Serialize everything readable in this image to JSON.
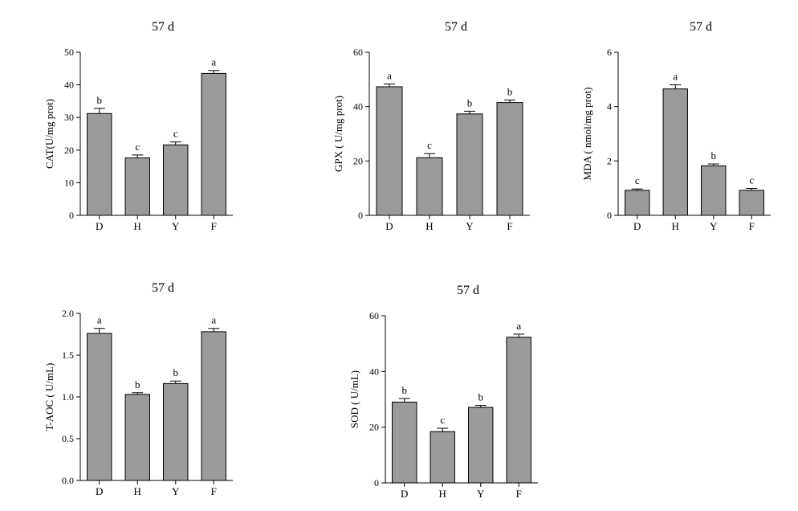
{
  "colors": {
    "bar": "#9b9b9b",
    "bar_stroke": "#000000",
    "axis": "#000000"
  },
  "chart_data": [
    {
      "type": "bar",
      "title": "57 d",
      "xlabel": "",
      "ylabel": "CAT(U/mg prot)",
      "categories": [
        "D",
        "H",
        "Y",
        "F"
      ],
      "values": [
        31.2,
        17.6,
        21.6,
        43.5
      ],
      "errors": [
        1.6,
        0.9,
        0.9,
        0.9
      ],
      "letters": [
        "b",
        "c",
        "c",
        "a"
      ],
      "ylim": [
        0,
        50
      ],
      "yticks": [
        0,
        10,
        20,
        30,
        40,
        50
      ],
      "yticklabels": [
        "0",
        "10",
        "20",
        "30",
        "40",
        "50"
      ]
    },
    {
      "type": "bar",
      "title": "57 d",
      "xlabel": "",
      "ylabel": "GPX ( U/mg prot)",
      "categories": [
        "D",
        "H",
        "Y",
        "F"
      ],
      "values": [
        47.3,
        21.2,
        37.3,
        41.5
      ],
      "errors": [
        1.0,
        1.5,
        1.0,
        0.9
      ],
      "letters": [
        "a",
        "c",
        "b",
        "b"
      ],
      "ylim": [
        0,
        60
      ],
      "yticks": [
        0,
        20,
        40,
        60
      ],
      "yticklabels": [
        "0",
        "20",
        "40",
        "60"
      ]
    },
    {
      "type": "bar",
      "title": "57 d",
      "xlabel": "",
      "ylabel": "MDA ( nmol/mg prot)",
      "categories": [
        "D",
        "H",
        "Y",
        "F"
      ],
      "values": [
        0.92,
        4.65,
        1.82,
        0.92
      ],
      "errors": [
        0.05,
        0.15,
        0.07,
        0.07
      ],
      "letters": [
        "c",
        "a",
        "b",
        "c"
      ],
      "ylim": [
        0,
        6
      ],
      "yticks": [
        0,
        2,
        4,
        6
      ],
      "yticklabels": [
        "0",
        "2",
        "4",
        "6"
      ]
    },
    {
      "type": "bar",
      "title": "57 d",
      "xlabel": "",
      "ylabel": "T-AOC ( U/mL)",
      "categories": [
        "D",
        "H",
        "Y",
        "F"
      ],
      "values": [
        1.76,
        1.03,
        1.16,
        1.78
      ],
      "errors": [
        0.06,
        0.02,
        0.03,
        0.04
      ],
      "letters": [
        "a",
        "b",
        "b",
        "a"
      ],
      "ylim": [
        0,
        2.0
      ],
      "yticks": [
        0,
        0.5,
        1.0,
        1.5,
        2.0
      ],
      "yticklabels": [
        "0.0",
        "0.5",
        "1.0",
        "1.5",
        "2.0"
      ]
    },
    {
      "type": "bar",
      "title": "57 d",
      "xlabel": "",
      "ylabel": "SOD ( U/mL)",
      "categories": [
        "D",
        "H",
        "Y",
        "F"
      ],
      "values": [
        29.0,
        18.4,
        27.1,
        52.3
      ],
      "errors": [
        1.3,
        1.2,
        0.7,
        1.1
      ],
      "letters": [
        "b",
        "c",
        "b",
        "a"
      ],
      "ylim": [
        0,
        60
      ],
      "yticks": [
        0,
        20,
        40,
        60
      ],
      "yticklabels": [
        "0",
        "20",
        "40",
        "60"
      ]
    }
  ]
}
